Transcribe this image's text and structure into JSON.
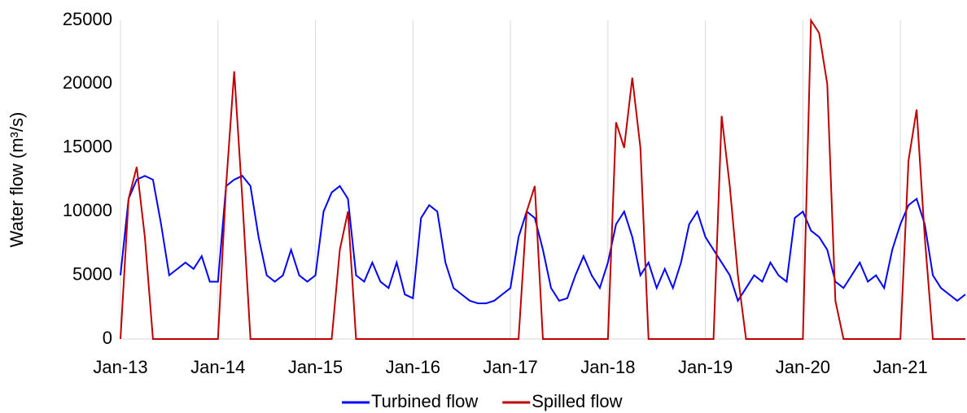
{
  "chart_data": {
    "type": "line",
    "y_label": "Water flow (m³/s)",
    "categories": [
      "Jan-13",
      null,
      null,
      null,
      null,
      null,
      null,
      null,
      null,
      null,
      null,
      null,
      "Jan-14",
      null,
      null,
      null,
      null,
      null,
      null,
      null,
      null,
      null,
      null,
      null,
      "Jan-15",
      null,
      null,
      null,
      null,
      null,
      null,
      null,
      null,
      null,
      null,
      null,
      "Jan-16",
      null,
      null,
      null,
      null,
      null,
      null,
      null,
      null,
      null,
      null,
      null,
      "Jan-17",
      null,
      null,
      null,
      null,
      null,
      null,
      null,
      null,
      null,
      null,
      null,
      "Jan-18",
      null,
      null,
      null,
      null,
      null,
      null,
      null,
      null,
      null,
      null,
      null,
      "Jan-19",
      null,
      null,
      null,
      null,
      null,
      null,
      null,
      null,
      null,
      null,
      null,
      "Jan-20",
      null,
      null,
      null,
      null,
      null,
      null,
      null,
      null,
      null,
      null,
      null,
      "Jan-21",
      null,
      null,
      null,
      null,
      null,
      null,
      null,
      null
    ],
    "series": [
      {
        "name": "Turbined flow",
        "color": "#0000ff",
        "values": [
          5000,
          11000,
          12500,
          12800,
          12500,
          9000,
          5000,
          5500,
          6000,
          5500,
          6500,
          4500,
          4500,
          12000,
          12500,
          12800,
          12000,
          8000,
          5000,
          4500,
          5000,
          7000,
          5000,
          4500,
          5000,
          10000,
          11500,
          12000,
          11000,
          5000,
          4500,
          6000,
          4500,
          4000,
          6000,
          3500,
          3200,
          9500,
          10500,
          10000,
          6000,
          4000,
          3500,
          3000,
          2800,
          2800,
          3000,
          3500,
          4000,
          8000,
          10000,
          9500,
          7000,
          4000,
          3000,
          3200,
          5000,
          6500,
          5000,
          4000,
          6000,
          9000,
          10000,
          8000,
          5000,
          6000,
          4000,
          5500,
          4000,
          6000,
          9000,
          10000,
          8000,
          7000,
          6000,
          5000,
          3000,
          4000,
          5000,
          4500,
          6000,
          5000,
          4500,
          9500,
          10000,
          8500,
          8000,
          7000,
          4500,
          4000,
          5000,
          6000,
          4500,
          5000,
          4000,
          7000,
          9000,
          10500,
          11000,
          9000,
          5000,
          4000,
          3500,
          3000,
          3500
        ]
      },
      {
        "name": "Spilled flow",
        "color": "#c00000",
        "values": [
          0,
          11000,
          13500,
          8000,
          0,
          0,
          0,
          0,
          0,
          0,
          0,
          0,
          0,
          12000,
          21000,
          11000,
          0,
          0,
          0,
          0,
          0,
          0,
          0,
          0,
          0,
          0,
          0,
          7000,
          10000,
          0,
          0,
          0,
          0,
          0,
          0,
          0,
          0,
          0,
          0,
          0,
          0,
          0,
          0,
          0,
          0,
          0,
          0,
          0,
          0,
          0,
          10000,
          12000,
          0,
          0,
          0,
          0,
          0,
          0,
          0,
          0,
          0,
          17000,
          15000,
          20500,
          15000,
          0,
          0,
          0,
          0,
          0,
          0,
          0,
          0,
          0,
          17500,
          12000,
          5000,
          0,
          0,
          0,
          0,
          0,
          0,
          0,
          0,
          25000,
          24000,
          20000,
          3000,
          0,
          0,
          0,
          0,
          0,
          0,
          0,
          0,
          14000,
          18000,
          8000,
          0,
          0,
          0,
          0,
          0
        ]
      }
    ],
    "ylim": [
      0,
      25000
    ],
    "yticks": [
      0,
      5000,
      10000,
      15000,
      20000,
      25000
    ],
    "grid": true,
    "legend": "bottom"
  }
}
